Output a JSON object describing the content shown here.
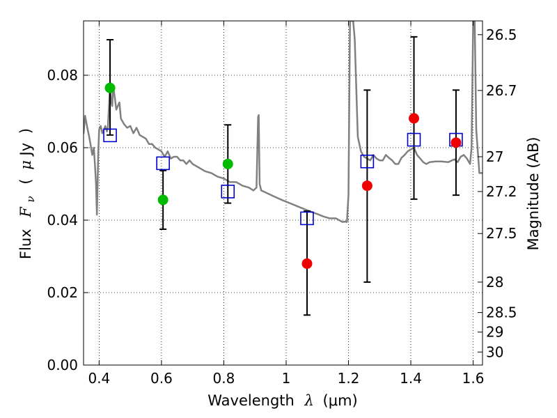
{
  "chart_data": {
    "type": "scatter",
    "title": "",
    "x_axis": {
      "label_prefix": "Wavelength",
      "label_symbol": "λ",
      "label_unit": "(μm)",
      "range": [
        0.35,
        1.63
      ],
      "ticks": [
        0.4,
        0.6,
        0.8,
        1.0,
        1.2,
        1.4,
        1.6
      ],
      "tick_labels": [
        "0.4",
        "0.6",
        "0.8",
        "1",
        "1.2",
        "1.4",
        "1.6"
      ]
    },
    "y_axis": {
      "label_prefix": "Flux",
      "label_symbol": "F",
      "label_subscript": "ν",
      "label_unit_open": "(",
      "label_unit_mu": "μ",
      "label_unit_rest": "Jy",
      "label_unit_close": ")",
      "range": [
        0.0,
        0.095
      ],
      "ticks": [
        0.0,
        0.02,
        0.04,
        0.06,
        0.08
      ],
      "tick_labels": [
        "0.00",
        "0.02",
        "0.04",
        "0.06",
        "0.08"
      ]
    },
    "y2_axis": {
      "label": "Magnitude (AB)",
      "tick_labels": [
        "26.5",
        "26.7",
        "27",
        "27.2",
        "27.5",
        "28",
        "28.5",
        "29",
        "30"
      ],
      "tick_flux": [
        0.0912,
        0.0758,
        0.0575,
        0.0479,
        0.0363,
        0.0229,
        0.0145,
        0.0091,
        0.0036
      ]
    },
    "grid": true,
    "series": [
      {
        "marker": "open-square",
        "color": "#0000cc",
        "points": [
          [
            0.435,
            0.0634
          ],
          [
            0.605,
            0.0557
          ],
          [
            0.813,
            0.0479
          ],
          [
            1.067,
            0.0405
          ],
          [
            1.26,
            0.0562
          ],
          [
            1.41,
            0.0622
          ],
          [
            1.545,
            0.0622
          ]
        ]
      },
      {
        "marker": "filled-circle",
        "color": "#00bb00",
        "points": [
          [
            0.435,
            0.0765,
            0.0635,
            0.0898
          ],
          [
            0.605,
            0.0456,
            0.0375,
            0.0537
          ],
          [
            0.813,
            0.0555,
            0.0447,
            0.0663
          ]
        ]
      },
      {
        "marker": "filled-circle",
        "color": "#ee0000",
        "points": [
          [
            1.067,
            0.028,
            0.0138,
            0.0425
          ],
          [
            1.26,
            0.0495,
            0.0229,
            0.0759
          ],
          [
            1.41,
            0.0681,
            0.0458,
            0.0906
          ],
          [
            1.545,
            0.0614,
            0.0469,
            0.0759
          ]
        ]
      }
    ],
    "sed_model": {
      "color": "#808080",
      "x": [
        0.35,
        0.355,
        0.362,
        0.368,
        0.372,
        0.378,
        0.383,
        0.387,
        0.39,
        0.393,
        0.397,
        0.4,
        0.405,
        0.41,
        0.415,
        0.42,
        0.425,
        0.428,
        0.432,
        0.435,
        0.438,
        0.442,
        0.445,
        0.45,
        0.455,
        0.46,
        0.465,
        0.47,
        0.48,
        0.49,
        0.5,
        0.51,
        0.52,
        0.53,
        0.54,
        0.55,
        0.56,
        0.57,
        0.58,
        0.59,
        0.6,
        0.61,
        0.62,
        0.63,
        0.64,
        0.65,
        0.66,
        0.67,
        0.68,
        0.69,
        0.7,
        0.72,
        0.74,
        0.76,
        0.78,
        0.8,
        0.82,
        0.84,
        0.86,
        0.88,
        0.895,
        0.905,
        0.91,
        0.912,
        0.915,
        0.92,
        0.94,
        0.96,
        0.98,
        1.0,
        1.02,
        1.04,
        1.06,
        1.08,
        1.1,
        1.12,
        1.14,
        1.16,
        1.18,
        1.19,
        1.195,
        1.2,
        1.205,
        1.21,
        1.215,
        1.22,
        1.23,
        1.24,
        1.25,
        1.26,
        1.27,
        1.28,
        1.29,
        1.3,
        1.31,
        1.32,
        1.33,
        1.34,
        1.35,
        1.36,
        1.37,
        1.38,
        1.39,
        1.4,
        1.41,
        1.42,
        1.43,
        1.44,
        1.45,
        1.46,
        1.48,
        1.5,
        1.52,
        1.54,
        1.55,
        1.56,
        1.57,
        1.58,
        1.59,
        1.595,
        1.6,
        1.605,
        1.61,
        1.62,
        1.63
      ],
      "y": [
        0.0638,
        0.0688,
        0.0655,
        0.063,
        0.0612,
        0.058,
        0.06,
        0.0545,
        0.05,
        0.0415,
        0.058,
        0.065,
        0.066,
        0.064,
        0.065,
        0.066,
        0.0645,
        0.0655,
        0.072,
        0.078,
        0.073,
        0.0715,
        0.077,
        0.074,
        0.0705,
        0.0715,
        0.0725,
        0.068,
        0.0665,
        0.0655,
        0.066,
        0.064,
        0.0655,
        0.0635,
        0.063,
        0.0625,
        0.061,
        0.061,
        0.06,
        0.0595,
        0.059,
        0.0575,
        0.059,
        0.057,
        0.0575,
        0.0575,
        0.0565,
        0.0565,
        0.0555,
        0.0565,
        0.0555,
        0.0545,
        0.0535,
        0.053,
        0.052,
        0.0515,
        0.0505,
        0.0505,
        0.0495,
        0.049,
        0.0482,
        0.049,
        0.0685,
        0.069,
        0.05,
        0.0482,
        0.0474,
        0.0466,
        0.0458,
        0.0451,
        0.0444,
        0.0437,
        0.043,
        0.0423,
        0.0417,
        0.041,
        0.0405,
        0.0405,
        0.0395,
        0.0396,
        0.0395,
        0.047,
        0.095,
        0.095,
        0.095,
        0.09,
        0.063,
        0.059,
        0.0575,
        0.057,
        0.0565,
        0.058,
        0.057,
        0.0565,
        0.0565,
        0.058,
        0.0572,
        0.0565,
        0.0555,
        0.0555,
        0.0572,
        0.058,
        0.059,
        0.0595,
        0.06,
        0.058,
        0.057,
        0.056,
        0.0555,
        0.056,
        0.0562,
        0.0562,
        0.056,
        0.0568,
        0.056,
        0.0575,
        0.058,
        0.057,
        0.0555,
        0.06,
        0.095,
        0.095,
        0.065,
        0.053,
        0.053
      ]
    }
  }
}
